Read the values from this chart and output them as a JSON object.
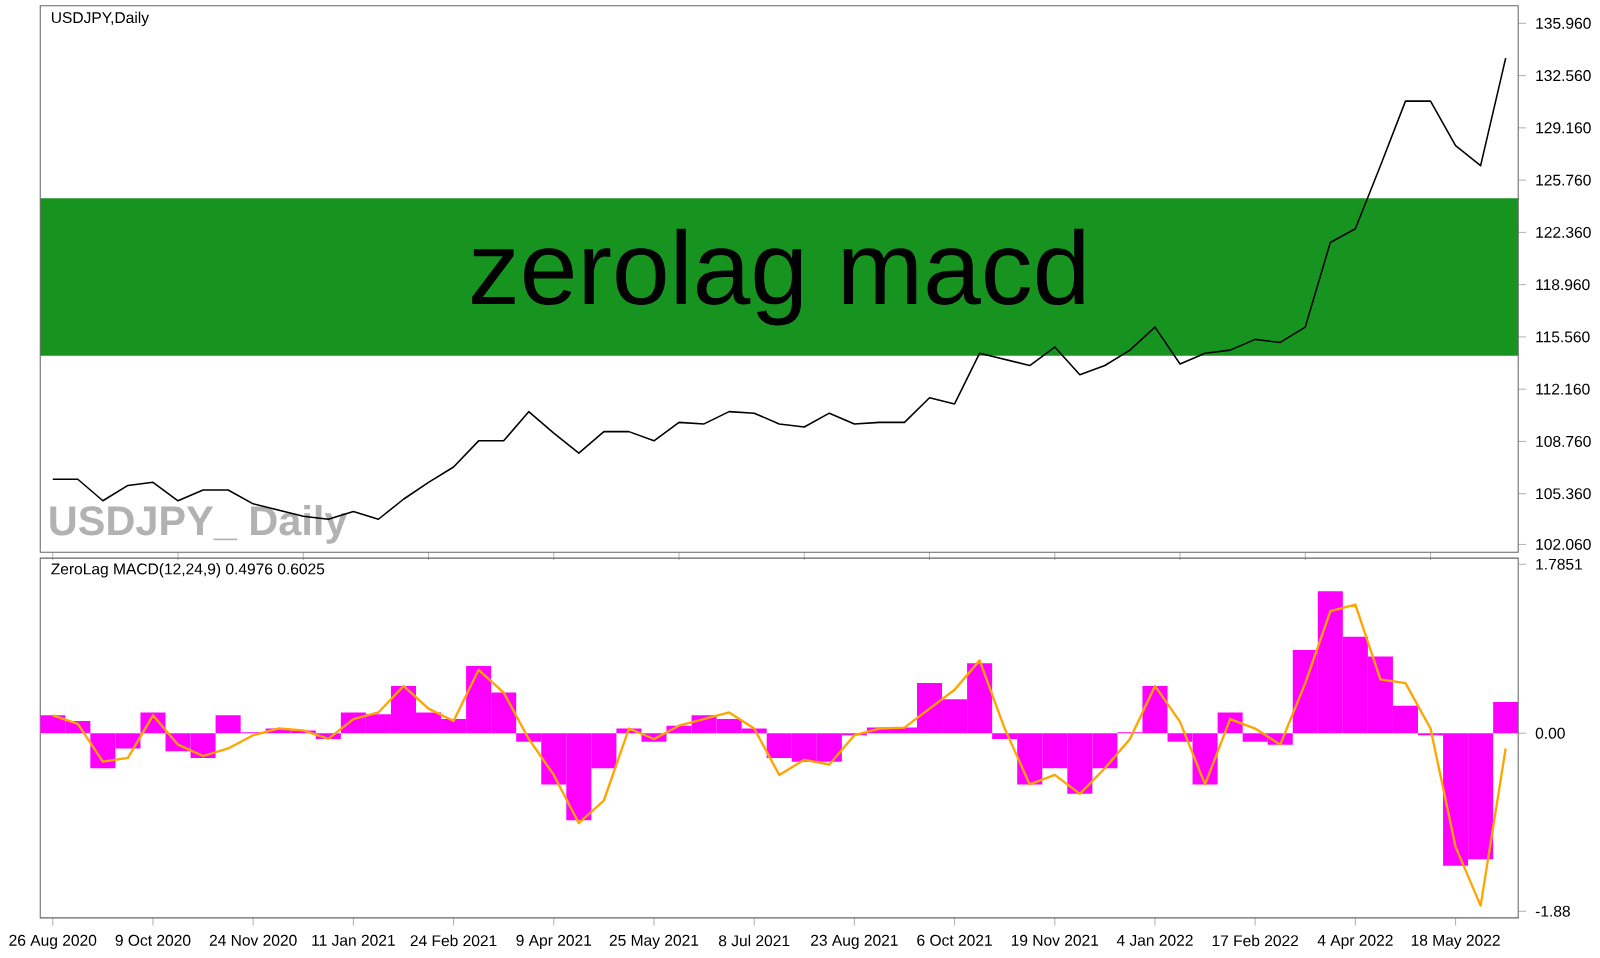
{
  "chart_data": [
    {
      "type": "line",
      "title": "zerolag macd",
      "subtitle": "USDJPY,Daily",
      "annotations": [
        "USDJPY_ Daily"
      ],
      "categories": [
        null,
        null,
        null,
        null,
        null,
        null,
        null,
        null,
        null,
        null,
        null,
        null,
        null,
        null,
        null,
        null,
        null,
        null,
        null,
        null,
        null,
        null,
        null,
        null,
        null,
        null,
        null,
        null,
        null,
        null,
        null,
        null,
        null,
        null,
        null,
        null,
        null,
        null,
        null,
        null,
        null,
        null,
        null,
        null,
        null,
        null,
        null,
        null,
        null,
        null,
        null,
        null,
        null,
        null,
        null,
        null,
        null,
        null,
        null
      ],
      "values": [
        106.3,
        106.3,
        104.9,
        105.9,
        106.1,
        104.9,
        105.6,
        105.6,
        104.7,
        104.3,
        103.9,
        103.7,
        104.2,
        103.7,
        105.0,
        106.1,
        107.1,
        108.8,
        108.8,
        110.7,
        109.3,
        108.0,
        109.4,
        109.4,
        108.8,
        110.0,
        109.9,
        110.7,
        110.6,
        109.9,
        109.7,
        110.6,
        109.9,
        110.0,
        110.0,
        111.6,
        111.2,
        114.5,
        114.1,
        113.7,
        114.9,
        113.1,
        113.7,
        114.7,
        116.2,
        113.8,
        114.5,
        114.7,
        115.4,
        115.2,
        116.2,
        121.7,
        122.6,
        126.7,
        130.9,
        130.9,
        128.0,
        126.7,
        133.7
      ],
      "color": "#000000",
      "ylim": [
        101.55,
        137.1
      ],
      "tick_labels": "y",
      "yticks": [
        {
          "value": 102.06,
          "label": "102.060"
        },
        {
          "value": 105.36,
          "label": "105.360"
        },
        {
          "value": 108.76,
          "label": "108.760"
        },
        {
          "value": 112.16,
          "label": "112.160"
        },
        {
          "value": 115.56,
          "label": "115.560"
        },
        {
          "value": 118.96,
          "label": "118.960"
        },
        {
          "value": 122.36,
          "label": "122.360"
        },
        {
          "value": 125.76,
          "label": "125.760"
        },
        {
          "value": 129.16,
          "label": "129.160"
        },
        {
          "value": 132.56,
          "label": "132.560"
        },
        {
          "value": 135.96,
          "label": "135.960"
        }
      ]
    },
    {
      "type": "bar",
      "title": "ZeroLag MACD(12,24,9) 0.4976 0.6025",
      "categories": [
        "26 Aug 2020",
        null,
        null,
        null,
        "9 Oct 2020",
        null,
        null,
        null,
        "24 Nov 2020",
        null,
        null,
        null,
        "11 Jan 2021",
        null,
        null,
        null,
        "24 Feb 2021",
        null,
        null,
        null,
        "9 Apr 2021",
        null,
        null,
        null,
        "25 May 2021",
        null,
        null,
        null,
        "8 Jul 2021",
        null,
        null,
        null,
        "23 Aug 2021",
        null,
        null,
        null,
        "6 Oct 2021",
        null,
        null,
        null,
        "19 Nov 2021",
        null,
        null,
        null,
        "4 Jan 2022",
        null,
        null,
        null,
        "17 Feb 2022",
        null,
        null,
        null,
        "4 Apr 2022",
        null,
        null,
        null,
        "18 May 2022",
        null,
        null
      ],
      "series": [
        {
          "type": "bar",
          "color": "#ff00ff",
          "values": [
            0.19,
            0.13,
            -0.37,
            -0.16,
            0.22,
            -0.19,
            -0.26,
            0.19,
            0.01,
            0.05,
            0.03,
            -0.06,
            0.22,
            0.2,
            0.5,
            0.22,
            0.15,
            0.71,
            0.43,
            -0.09,
            -0.54,
            -0.92,
            -0.37,
            0.05,
            -0.09,
            0.08,
            0.19,
            0.15,
            0.05,
            -0.26,
            -0.3,
            -0.3,
            -0.02,
            0.06,
            0.06,
            0.53,
            0.36,
            0.74,
            -0.06,
            -0.54,
            -0.37,
            -0.64,
            -0.37,
            0.01,
            0.5,
            -0.09,
            -0.54,
            0.22,
            -0.09,
            -0.12,
            0.88,
            1.5,
            1.02,
            0.81,
            0.29,
            -0.02,
            -1.4,
            -1.33,
            0.33
          ]
        },
        {
          "type": "line",
          "color": "#ffa500",
          "values": [
            0.19,
            0.1,
            -0.3,
            -0.26,
            0.19,
            -0.12,
            -0.24,
            -0.16,
            -0.02,
            0.05,
            0.03,
            -0.06,
            0.15,
            0.22,
            0.5,
            0.26,
            0.13,
            0.67,
            0.43,
            -0.06,
            -0.44,
            -0.95,
            -0.71,
            0.05,
            -0.06,
            0.08,
            0.15,
            0.22,
            0.05,
            -0.44,
            -0.28,
            -0.33,
            -0.02,
            0.05,
            0.06,
            0.26,
            0.46,
            0.77,
            0.05,
            -0.54,
            -0.44,
            -0.64,
            -0.37,
            -0.06,
            0.5,
            0.12,
            -0.54,
            0.15,
            0.05,
            -0.12,
            0.53,
            1.29,
            1.36,
            0.57,
            0.53,
            0.05,
            -1.2,
            -1.82,
            -0.16
          ]
        }
      ],
      "ylim": [
        -1.95,
        1.85
      ],
      "yticks": [
        {
          "value": 1.7851,
          "label": "1.7851"
        },
        {
          "value": 0,
          "label": "0.00"
        },
        {
          "value": -1.88,
          "label": "-1.88"
        }
      ]
    }
  ]
}
